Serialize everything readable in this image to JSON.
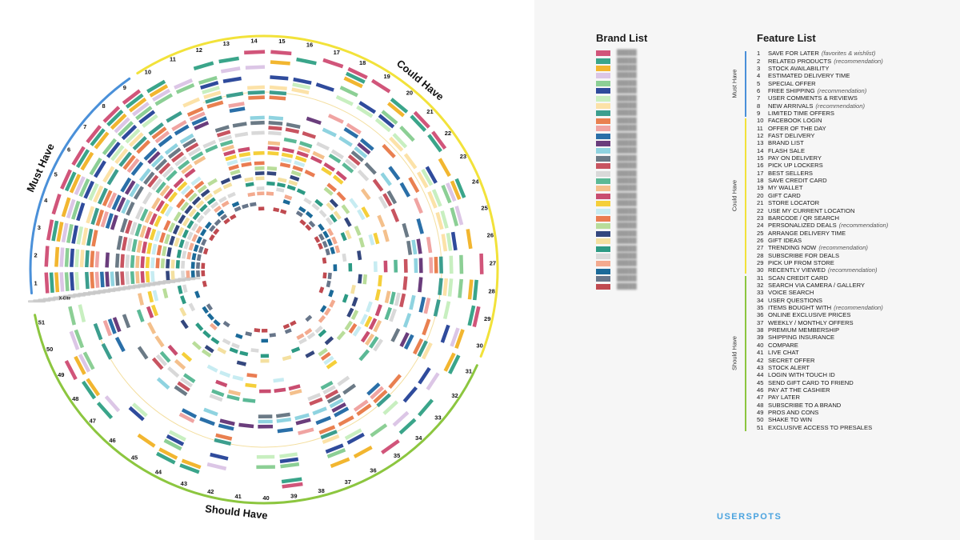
{
  "chart_data": {
    "type": "radial-heatmap",
    "categories": [
      {
        "n": 1,
        "name": "SAVE FOR LATER",
        "note": "(favorites & wishlist)",
        "group": "Must Have"
      },
      {
        "n": 2,
        "name": "RELATED PRODUCTS",
        "note": "(recommendation)",
        "group": "Must Have"
      },
      {
        "n": 3,
        "name": "STOCK AVAILABILITY",
        "note": "",
        "group": "Must Have"
      },
      {
        "n": 4,
        "name": "ESTIMATED DELIVERY TIME",
        "note": "",
        "group": "Must Have"
      },
      {
        "n": 5,
        "name": "SPECIAL OFFER",
        "note": "",
        "group": "Must Have"
      },
      {
        "n": 6,
        "name": "FREE SHIPPING",
        "note": "(recommendation)",
        "group": "Must Have"
      },
      {
        "n": 7,
        "name": "USER COMMENTS & REVIEWS",
        "note": "",
        "group": "Must Have"
      },
      {
        "n": 8,
        "name": "NEW ARRIVALS",
        "note": "(recommendation)",
        "group": "Must Have"
      },
      {
        "n": 9,
        "name": "LIMITED TIME OFFERS",
        "note": "",
        "group": "Must Have"
      },
      {
        "n": 10,
        "name": "FACEBOOK LOGIN",
        "note": "",
        "group": "Could Have"
      },
      {
        "n": 11,
        "name": "OFFER OF THE DAY",
        "note": "",
        "group": "Could Have"
      },
      {
        "n": 12,
        "name": "FAST DELIVERY",
        "note": "",
        "group": "Could Have"
      },
      {
        "n": 13,
        "name": "BRAND LIST",
        "note": "",
        "group": "Could Have"
      },
      {
        "n": 14,
        "name": "FLASH SALE",
        "note": "",
        "group": "Could Have"
      },
      {
        "n": 15,
        "name": "PAY ON DELIVERY",
        "note": "",
        "group": "Could Have"
      },
      {
        "n": 16,
        "name": "PICK UP LOCKERS",
        "note": "",
        "group": "Could Have"
      },
      {
        "n": 17,
        "name": "BEST SELLERS",
        "note": "",
        "group": "Could Have"
      },
      {
        "n": 18,
        "name": "SAVE CREDIT CARD",
        "note": "",
        "group": "Could Have"
      },
      {
        "n": 19,
        "name": "MY WALLET",
        "note": "",
        "group": "Could Have"
      },
      {
        "n": 20,
        "name": "GIFT CARD",
        "note": "",
        "group": "Could Have"
      },
      {
        "n": 21,
        "name": "STORE LOCATOR",
        "note": "",
        "group": "Could Have"
      },
      {
        "n": 22,
        "name": "USE MY CURRENT LOCATION",
        "note": "",
        "group": "Could Have"
      },
      {
        "n": 23,
        "name": "BARCODE / QR SEARCH",
        "note": "",
        "group": "Could Have"
      },
      {
        "n": 24,
        "name": "PERSONALIZED DEALS",
        "note": "(recommendation)",
        "group": "Could Have"
      },
      {
        "n": 25,
        "name": "ARRANGE DELIVERY TIME",
        "note": "",
        "group": "Could Have"
      },
      {
        "n": 26,
        "name": "GIFT IDEAS",
        "note": "",
        "group": "Could Have"
      },
      {
        "n": 27,
        "name": "TRENDING NOW",
        "note": "(recommendation)",
        "group": "Could Have"
      },
      {
        "n": 28,
        "name": "SUBSCRIBE FOR DEALS",
        "note": "",
        "group": "Could Have"
      },
      {
        "n": 29,
        "name": "PICK UP FROM STORE",
        "note": "",
        "group": "Could Have"
      },
      {
        "n": 30,
        "name": "RECENTLY VIEWED",
        "note": "(recommendation)",
        "group": "Could Have"
      },
      {
        "n": 31,
        "name": "SCAN CREDIT CARD",
        "note": "",
        "group": "Should Have"
      },
      {
        "n": 32,
        "name": "SEARCH VIA CAMERA / GALLERY",
        "note": "",
        "group": "Should Have"
      },
      {
        "n": 33,
        "name": "VOICE SEARCH",
        "note": "",
        "group": "Should Have"
      },
      {
        "n": 34,
        "name": "USER QUESTIONS",
        "note": "",
        "group": "Should Have"
      },
      {
        "n": 35,
        "name": "ITEMS BOUGHT WITH",
        "note": "(recommendation)",
        "group": "Should Have"
      },
      {
        "n": 36,
        "name": "ONLINE EXCLUSIVE PRICES",
        "note": "",
        "group": "Should Have"
      },
      {
        "n": 37,
        "name": "WEEKLY / MONTHLY OFFERS",
        "note": "",
        "group": "Should Have"
      },
      {
        "n": 38,
        "name": "PREMIUM MEMBERSHIP",
        "note": "",
        "group": "Should Have"
      },
      {
        "n": 39,
        "name": "SHIPPING INSURANCE",
        "note": "",
        "group": "Should Have"
      },
      {
        "n": 40,
        "name": "COMPARE",
        "note": "",
        "group": "Should Have"
      },
      {
        "n": 41,
        "name": "LIVE CHAT",
        "note": "",
        "group": "Should Have"
      },
      {
        "n": 42,
        "name": "SECRET OFFER",
        "note": "",
        "group": "Should Have"
      },
      {
        "n": 43,
        "name": "STOCK ALERT",
        "note": "",
        "group": "Should Have"
      },
      {
        "n": 44,
        "name": "LOGIN WITH TOUCH ID",
        "note": "",
        "group": "Should Have"
      },
      {
        "n": 45,
        "name": "SEND GIFT CARD TO FRIEND",
        "note": "",
        "group": "Should Have"
      },
      {
        "n": 46,
        "name": "PAY AT THE CASHIER",
        "note": "",
        "group": "Should Have"
      },
      {
        "n": 47,
        "name": "PAY LATER",
        "note": "",
        "group": "Should Have"
      },
      {
        "n": 48,
        "name": "SUBSCRIBE TO A BRAND",
        "note": "",
        "group": "Should Have"
      },
      {
        "n": 49,
        "name": "PROS AND CONS",
        "note": "",
        "group": "Should Have"
      },
      {
        "n": 50,
        "name": "SHAKE TO WIN",
        "note": "",
        "group": "Should Have"
      },
      {
        "n": 51,
        "name": "EXCLUSIVE ACCESS TO PRESALES",
        "note": "",
        "group": "Should Have"
      }
    ],
    "groups": [
      {
        "name": "Must Have",
        "from": 1,
        "to": 9,
        "color": "#4a90d9"
      },
      {
        "name": "Could Have",
        "from": 10,
        "to": 30,
        "color": "#f2e23a"
      },
      {
        "name": "Should Have",
        "from": 31,
        "to": 51,
        "color": "#8cc63f"
      }
    ],
    "brands": [
      {
        "color": "#d1557a"
      },
      {
        "color": "#3aa58a"
      },
      {
        "color": "#f2b630"
      },
      {
        "color": "#dcc6e6"
      },
      {
        "color": "#8ccf95"
      },
      {
        "color": "#2f4b9c"
      },
      {
        "color": "#c8efc0"
      },
      {
        "color": "#fce2a8"
      },
      {
        "color": "#3c9e8e"
      },
      {
        "color": "#e98050"
      },
      {
        "color": "#f0a4a2"
      },
      {
        "color": "#2a6fa8"
      },
      {
        "color": "#6a3d7c"
      },
      {
        "color": "#8fd3e0"
      },
      {
        "color": "#6b7a86"
      },
      {
        "color": "#c85460"
      },
      {
        "color": "#d9d9d9"
      },
      {
        "color": "#5bb996"
      },
      {
        "color": "#f4c08c"
      },
      {
        "color": "#c94d70"
      },
      {
        "color": "#f5cf3a"
      },
      {
        "color": "#c7ecf2"
      },
      {
        "color": "#ea7c52"
      },
      {
        "color": "#b9dd9a"
      },
      {
        "color": "#34477e"
      },
      {
        "color": "#f4e0a0"
      },
      {
        "color": "#2d9a84"
      },
      {
        "color": "#dadada"
      },
      {
        "color": "#f3aa8f"
      },
      {
        "color": "#1b6a99"
      },
      {
        "color": "#68768a"
      },
      {
        "color": "#c04a50"
      }
    ],
    "ring_label": "X-Cite",
    "number_of_rings": 32,
    "grid": false
  },
  "panel": {
    "brand_title": "Brand List",
    "feature_title": "Feature List",
    "logo_text": "USERSPOTS"
  }
}
